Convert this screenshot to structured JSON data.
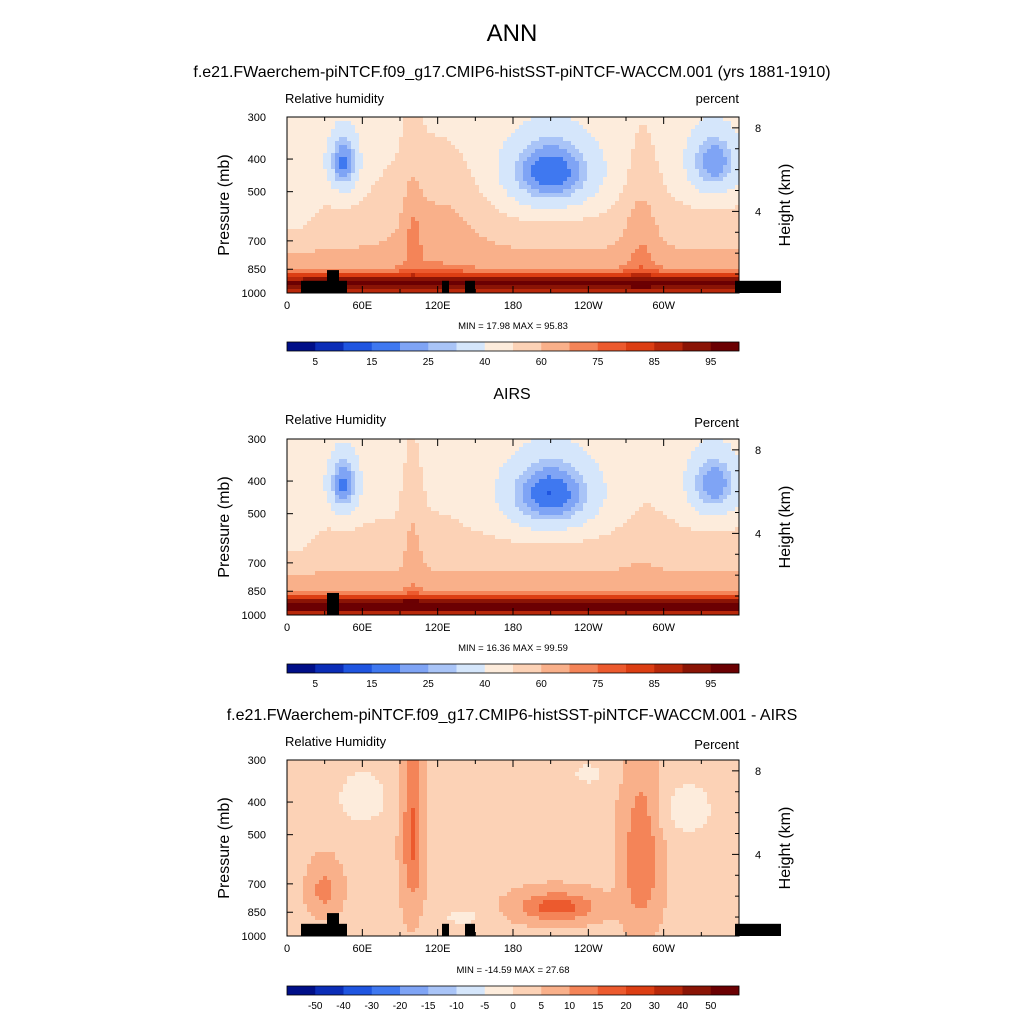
{
  "figure": {
    "title": "ANN",
    "panels": [
      {
        "title": "f.e21.FWaerchem-piNTCF.f09_g17.CMIP6-histSST-piNTCF-WACCM.001 (yrs 1881-1910)",
        "left_label": "Relative humidity",
        "right_label": "percent",
        "minmax": "MIN = 17.98  MAX = 95.83"
      },
      {
        "title": "AIRS",
        "left_label": "Relative Humidity",
        "right_label": "Percent",
        "minmax": "MIN = 16.36  MAX = 99.59"
      },
      {
        "title": "f.e21.FWaerchem-piNTCF.f09_g17.CMIP6-histSST-piNTCF-WACCM.001 - AIRS",
        "left_label": "Relative Humidity",
        "right_label": "Percent",
        "minmax": "MIN = -14.59  MAX = 27.68"
      }
    ]
  },
  "chart_data": [
    {
      "type": "heatmap",
      "title": "f.e21.FWaerchem-piNTCF.f09_g17.CMIP6-histSST-piNTCF-WACCM.001 (yrs 1881-1910)",
      "xlabel": "",
      "ylabel": "Pressure (mb)",
      "y2label": "Height (km)",
      "x_ticks": [
        "0",
        "60E",
        "120E",
        "180",
        "120W",
        "60W"
      ],
      "y_ticks": [
        "300",
        "400",
        "500",
        "700",
        "850",
        "1000"
      ],
      "y2_ticks": [
        "8",
        "4"
      ],
      "min": 17.98,
      "max": 95.83,
      "colorbar": {
        "labels": [
          "5",
          "15",
          "25",
          "40",
          "60",
          "75",
          "85",
          "95"
        ],
        "colors": [
          "#000f88",
          "#0b2db7",
          "#1f55e0",
          "#3f78f0",
          "#7fa4f5",
          "#a9c4f7",
          "#d5e6fb",
          "#fdecdc",
          "#fcd2b6",
          "#f9b08a",
          "#f48458",
          "#ec5a2e",
          "#dc3e13",
          "#b8280a",
          "#8a1405",
          "#6b0002"
        ]
      }
    },
    {
      "type": "heatmap",
      "title": "AIRS",
      "xlabel": "",
      "ylabel": "Pressure (mb)",
      "y2label": "Height (km)",
      "x_ticks": [
        "0",
        "60E",
        "120E",
        "180",
        "120W",
        "60W"
      ],
      "y_ticks": [
        "300",
        "400",
        "500",
        "700",
        "850",
        "1000"
      ],
      "y2_ticks": [
        "8",
        "4"
      ],
      "min": 16.36,
      "max": 99.59,
      "colorbar": {
        "labels": [
          "5",
          "15",
          "25",
          "40",
          "60",
          "75",
          "85",
          "95"
        ],
        "colors": [
          "#000f88",
          "#0b2db7",
          "#1f55e0",
          "#3f78f0",
          "#7fa4f5",
          "#a9c4f7",
          "#d5e6fb",
          "#fdecdc",
          "#fcd2b6",
          "#f9b08a",
          "#f48458",
          "#ec5a2e",
          "#dc3e13",
          "#b8280a",
          "#8a1405",
          "#6b0002"
        ]
      }
    },
    {
      "type": "heatmap",
      "title": "f.e21.FWaerchem-piNTCF.f09_g17.CMIP6-histSST-piNTCF-WACCM.001 - AIRS",
      "xlabel": "",
      "ylabel": "Pressure (mb)",
      "y2label": "Height (km)",
      "x_ticks": [
        "0",
        "60E",
        "120E",
        "180",
        "120W",
        "60W"
      ],
      "y_ticks": [
        "300",
        "400",
        "500",
        "700",
        "850",
        "1000"
      ],
      "y2_ticks": [
        "8",
        "4"
      ],
      "min": -14.59,
      "max": 27.68,
      "colorbar": {
        "labels": [
          "-50",
          "-40",
          "-30",
          "-20",
          "-15",
          "-10",
          "-5",
          "0",
          "5",
          "10",
          "15",
          "20",
          "30",
          "40",
          "50"
        ],
        "colors": [
          "#000f88",
          "#0b2db7",
          "#1f55e0",
          "#3f78f0",
          "#7fa4f5",
          "#a9c4f7",
          "#d5e6fb",
          "#fdecdc",
          "#fcd2b6",
          "#f9b08a",
          "#f48458",
          "#ec5a2e",
          "#dc3e13",
          "#b8280a",
          "#8a1405",
          "#6b0002"
        ]
      }
    }
  ]
}
